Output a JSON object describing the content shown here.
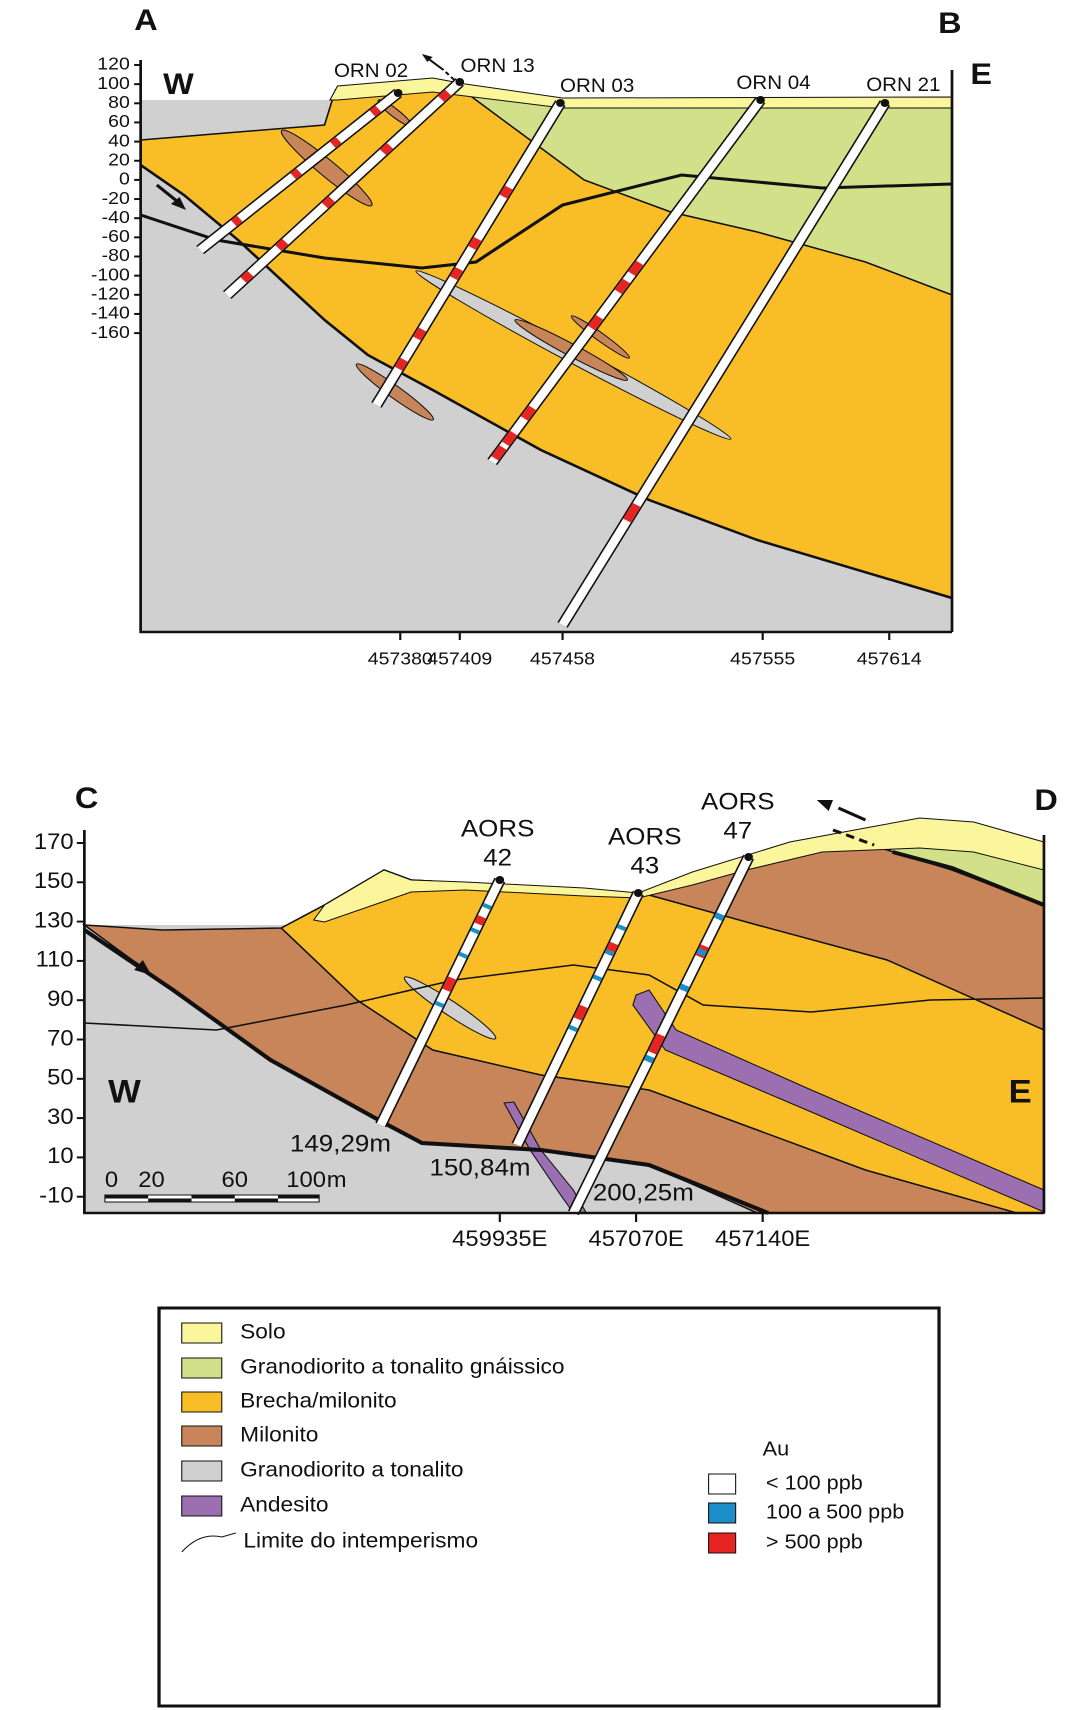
{
  "section_ab": {
    "corner_labels": [
      "A",
      "B"
    ],
    "side_labels": [
      "W",
      "E"
    ],
    "y_axis_labels": [
      120,
      100,
      80,
      60,
      40,
      20,
      0,
      -20,
      -40,
      -60,
      -80,
      -100,
      -120,
      -140,
      -160
    ],
    "drill_holes": [
      "ORN 02",
      "ORN 13",
      "ORN 03",
      "ORN 04",
      "ORN 21"
    ],
    "x_labels": [
      "457380",
      "457409",
      "457458",
      "457555",
      "457614"
    ]
  },
  "section_cd": {
    "corner_labels": [
      "C",
      "D"
    ],
    "side_labels": [
      "W",
      "E"
    ],
    "y_axis_labels": [
      170,
      150,
      130,
      110,
      90,
      70,
      50,
      30,
      10,
      -10
    ],
    "drill_holes": [
      {
        "name": "AORS",
        "number": "42"
      },
      {
        "name": "AORS",
        "number": "43"
      },
      {
        "name": "AORS",
        "number": "47"
      }
    ],
    "depths": [
      "149,29m",
      "150,84m",
      "200,25m"
    ],
    "x_labels": [
      "459935E",
      "457070E",
      "457140E"
    ],
    "scale_bar": [
      "0",
      "20",
      "60",
      "100",
      "m"
    ]
  },
  "legend": {
    "items": [
      "Solo",
      "Granodiorito a tonalito gnáissico",
      "Brecha/milonito",
      "Milonito",
      "Granodiorito a tonalito",
      "Andesito",
      "Limite do intemperismo"
    ],
    "au_title": "Au",
    "au_items": [
      "< 100 ppb",
      "100 a 500 ppb",
      "> 500 ppb"
    ]
  }
}
